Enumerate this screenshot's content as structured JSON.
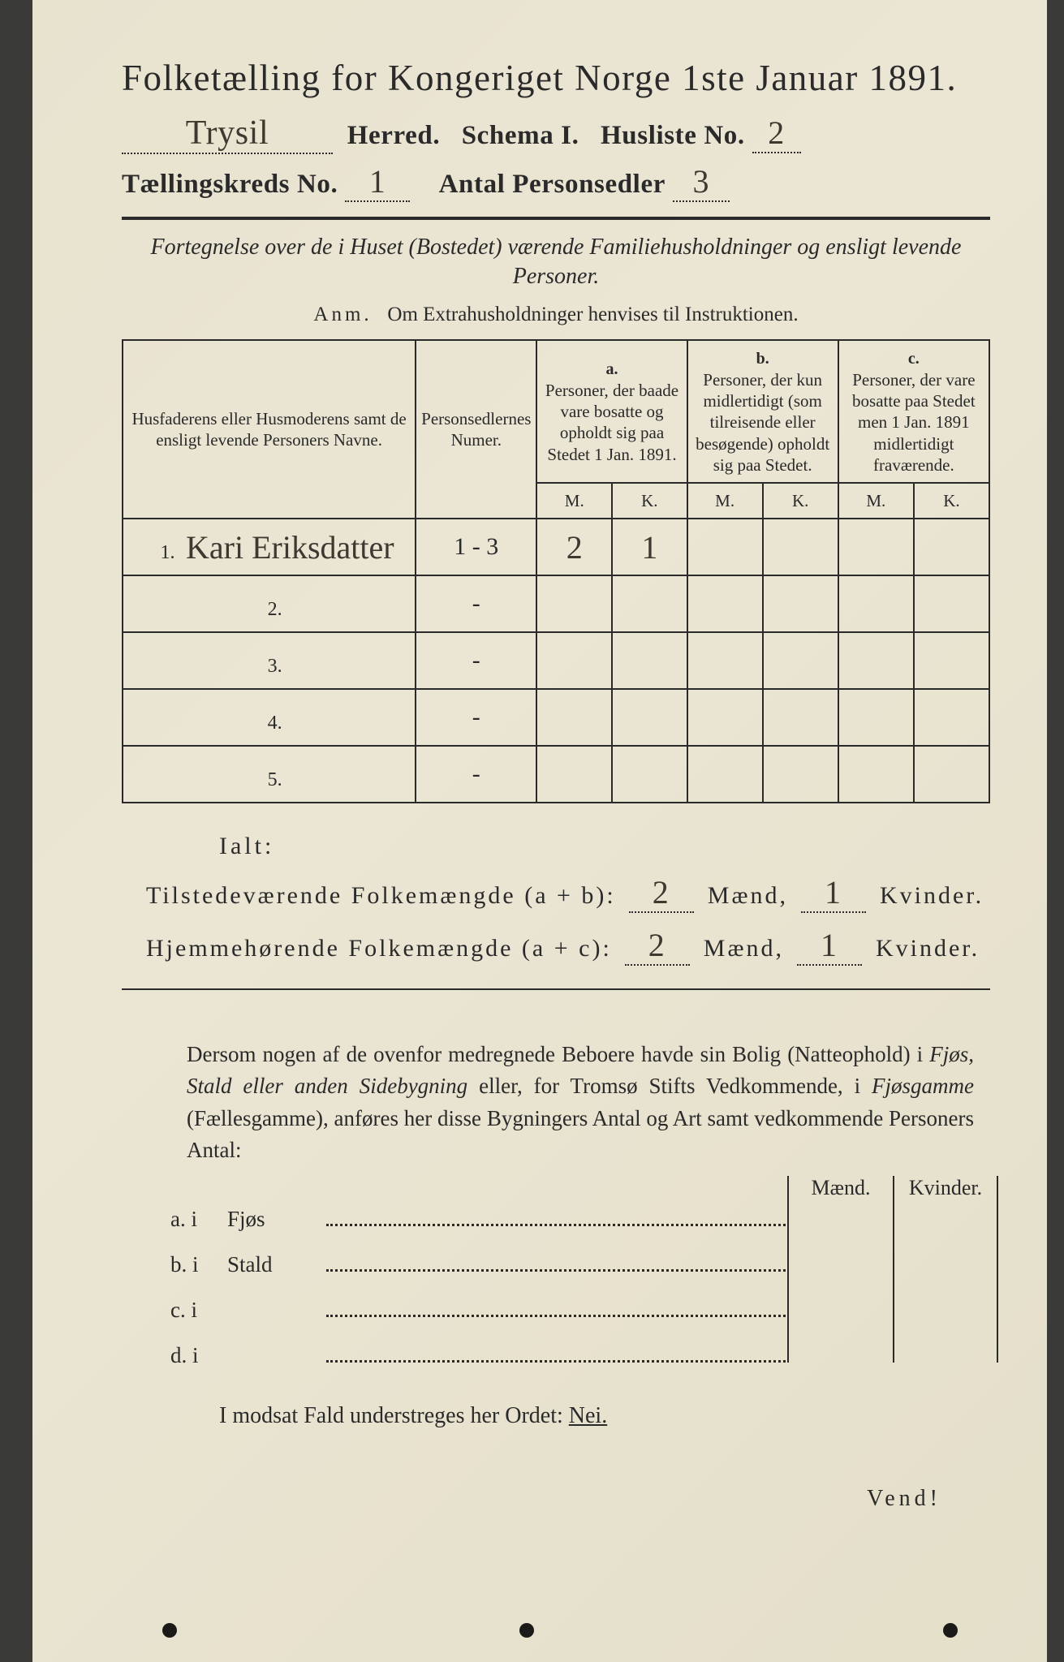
{
  "title": "Folketælling for Kongeriget Norge 1ste Januar 1891.",
  "header": {
    "herred_value": "Trysil",
    "herred_label": "Herred.",
    "schema_label": "Schema I.",
    "husliste_label": "Husliste No.",
    "husliste_value": "2",
    "kreds_label": "Tællingskreds No.",
    "kreds_value": "1",
    "antal_label": "Antal Personsedler",
    "antal_value": "3"
  },
  "subtitle": "Fortegnelse over de i Huset (Bostedet) værende Familiehusholdninger og ensligt levende Personer.",
  "anm_label": "Anm.",
  "anm_text": "Om Extrahusholdninger henvises til Instruktionen.",
  "cols": {
    "c1": "Husfaderens eller Husmoderens samt de ensligt levende Personers Navne.",
    "c2": "Personsedlernes Numer.",
    "a_lbl": "a.",
    "a": "Personer, der baade vare bosatte og opholdt sig paa Stedet 1 Jan. 1891.",
    "b_lbl": "b.",
    "b": "Personer, der kun midlertidigt (som tilreisende eller besøgende) opholdt sig paa Stedet.",
    "c_lbl": "c.",
    "c": "Personer, der vare bosatte paa Stedet men 1 Jan. 1891 midlertidigt fraværende.",
    "M": "M.",
    "K": "K."
  },
  "rows": [
    {
      "n": "1.",
      "name": "Kari Eriksdatter",
      "numer": "1 - 3",
      "aM": "2",
      "aK": "1",
      "bM": "",
      "bK": "",
      "cM": "",
      "cK": ""
    },
    {
      "n": "2.",
      "name": "",
      "numer": "-",
      "aM": "",
      "aK": "",
      "bM": "",
      "bK": "",
      "cM": "",
      "cK": ""
    },
    {
      "n": "3.",
      "name": "",
      "numer": "-",
      "aM": "",
      "aK": "",
      "bM": "",
      "bK": "",
      "cM": "",
      "cK": ""
    },
    {
      "n": "4.",
      "name": "",
      "numer": "-",
      "aM": "",
      "aK": "",
      "bM": "",
      "bK": "",
      "cM": "",
      "cK": ""
    },
    {
      "n": "5.",
      "name": "",
      "numer": "-",
      "aM": "",
      "aK": "",
      "bM": "",
      "bK": "",
      "cM": "",
      "cK": ""
    }
  ],
  "ialt": "Ialt:",
  "totals": {
    "row1_label": "Tilstedeværende Folkemængde (a + b):",
    "row2_label": "Hjemmehørende Folkemængde (a + c):",
    "maend_lbl": "Mænd,",
    "kvinder_lbl": "Kvinder.",
    "r1_m": "2",
    "r1_k": "1",
    "r2_m": "2",
    "r2_k": "1"
  },
  "para": {
    "t1": "Dersom nogen af de ovenfor medregnede Beboere havde sin Bolig (Natteophold) i ",
    "i1": "Fjøs, Stald eller anden Sidebygning",
    "t2": " eller, for Tromsø Stifts Vedkommende, i ",
    "i2": "Fjøsgamme",
    "t3": " (Fællesgamme), anføres her disse Bygningers Antal og Art samt vedkommende Personers Antal:"
  },
  "mk": {
    "m": "Mænd.",
    "k": "Kvinder."
  },
  "buildings": [
    {
      "lbl": "a.  i",
      "type": "Fjøs"
    },
    {
      "lbl": "b.  i",
      "type": "Stald"
    },
    {
      "lbl": "c.  i",
      "type": ""
    },
    {
      "lbl": "d.  i",
      "type": ""
    }
  ],
  "nei_line": "I modsat Fald understreges her Ordet: ",
  "nei": "Nei.",
  "vend": "Vend!",
  "colors": {
    "paper": "#e8e3cf",
    "ink": "#2a2a2a",
    "handwriting": "#3f3830"
  },
  "typography": {
    "title_pt": 45,
    "body_pt": 28,
    "small_pt": 21,
    "hand_family": "cursive"
  }
}
